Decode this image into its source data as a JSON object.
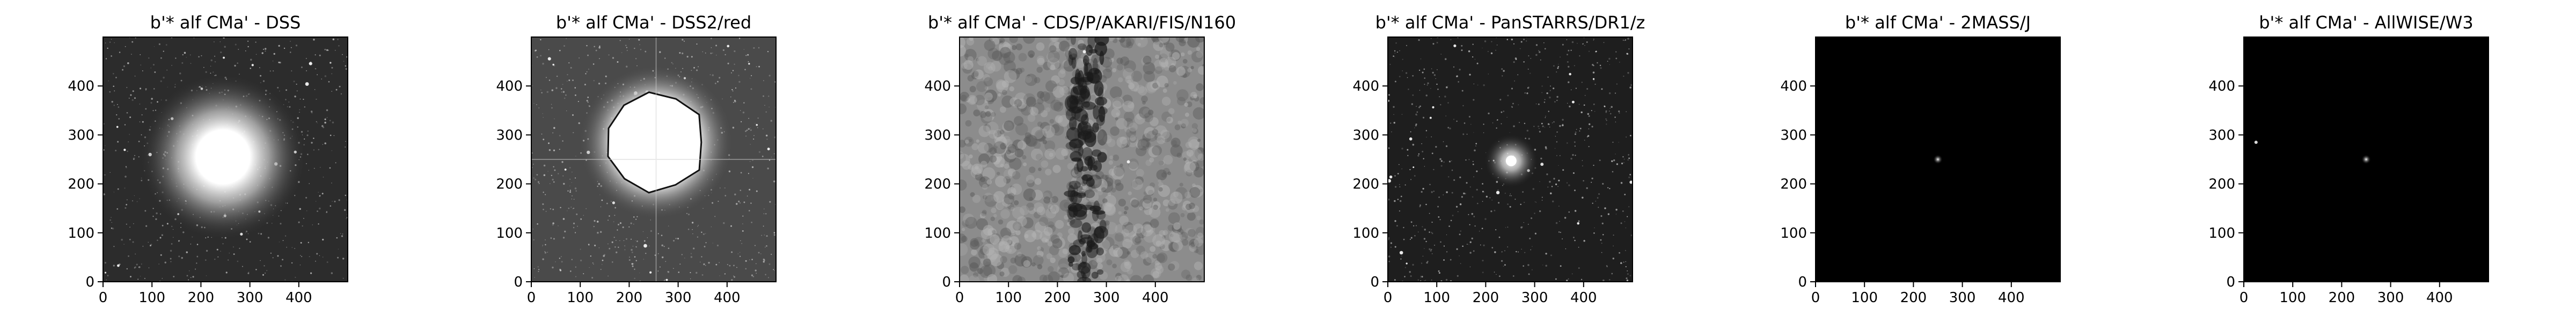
{
  "panels": [
    {
      "title": "b'* alf CMa' - DSS",
      "x_ticks": [
        "0",
        "100",
        "200",
        "300",
        "400"
      ],
      "y_ticks": [
        "0",
        "100",
        "200",
        "300",
        "400"
      ],
      "image": {
        "background": "#2c2c2c",
        "noise": "fine grain with scattered faint stars",
        "features": [
          {
            "kind": "saturated-halo",
            "x": 245,
            "y": 255,
            "core_radius": 55,
            "halo_radius": 170
          }
        ]
      }
    },
    {
      "title": "b'* alf CMa' - DSS2/red",
      "x_ticks": [
        "0",
        "100",
        "200",
        "300",
        "400"
      ],
      "y_ticks": [
        "0",
        "100",
        "200",
        "300",
        "400"
      ],
      "image": {
        "background": "#4a4a4a",
        "noise": "grain with scattered stars and diffraction cross",
        "features": [
          {
            "kind": "saturated-blob",
            "x": 255,
            "y": 285,
            "radius": 105
          },
          {
            "kind": "diffraction-cross",
            "x": 255,
            "y": 250
          }
        ]
      }
    },
    {
      "title": "b'* alf CMa' - CDS/P/AKARI/FIS/N160",
      "x_ticks": [
        "0",
        "100",
        "200",
        "300",
        "400"
      ],
      "y_ticks": [
        "0",
        "100",
        "200",
        "300",
        "400"
      ],
      "image": {
        "background": "#8c8c8c",
        "noise": "coarse mottled texture with dark vertical band",
        "features": [
          {
            "kind": "dark-vertical-band",
            "x": 260
          },
          {
            "kind": "point",
            "x": 255,
            "y": 470
          },
          {
            "kind": "point",
            "x": 345,
            "y": 245
          }
        ]
      }
    },
    {
      "title": "b'* alf CMa' - PanSTARRS/DR1/z",
      "x_ticks": [
        "0",
        "100",
        "200",
        "300",
        "400"
      ],
      "y_ticks": [
        "0",
        "100",
        "200",
        "300",
        "400"
      ],
      "image": {
        "background": "#1e1e1e",
        "noise": "fine grain with faint stars",
        "features": [
          {
            "kind": "bright-star",
            "x": 252,
            "y": 247
          },
          {
            "kind": "point",
            "x": 315,
            "y": 240
          }
        ]
      }
    },
    {
      "title": "b'* alf CMa' - 2MASS/J",
      "x_ticks": [
        "0",
        "100",
        "200",
        "300",
        "400"
      ],
      "y_ticks": [
        "0",
        "100",
        "200",
        "300",
        "400"
      ],
      "image": {
        "background": "#000000",
        "noise": "none",
        "features": [
          {
            "kind": "point-star",
            "x": 250,
            "y": 250
          }
        ]
      }
    },
    {
      "title": "b'* alf CMa' - AllWISE/W3",
      "x_ticks": [
        "0",
        "100",
        "200",
        "300",
        "400"
      ],
      "y_ticks": [
        "0",
        "100",
        "200",
        "300",
        "400"
      ],
      "image": {
        "background": "#000000",
        "noise": "none",
        "features": [
          {
            "kind": "point-star",
            "x": 250,
            "y": 250
          },
          {
            "kind": "point",
            "x": 25,
            "y": 285
          }
        ]
      }
    }
  ]
}
